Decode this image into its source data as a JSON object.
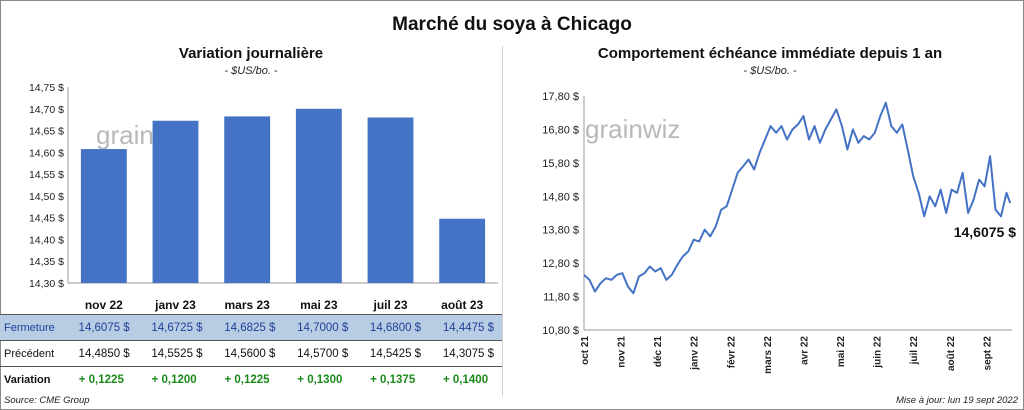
{
  "title": "Marché du soya à Chicago",
  "colors": {
    "bar": "#4472c4",
    "line": "#4472c4",
    "ferm_bg": "#b8cce4",
    "positive": "#1a8a1a"
  },
  "left_panel": {
    "title": "Variation journalière",
    "subtitle": "- $US/bo. -",
    "watermark": "grainwiz"
  },
  "right_panel": {
    "title": "Comportement échéance immédiate depuis 1 an",
    "subtitle": "- $US/bo. -",
    "watermark": "grainwiz",
    "last_label": "14,6075 $"
  },
  "table": {
    "rows": [
      {
        "label": "Fermeture",
        "cells": [
          "14,6075  $",
          "14,6725  $",
          "14,6825  $",
          "14,7000  $",
          "14,6800  $",
          "14,4475  $"
        ]
      },
      {
        "label": "Précédent",
        "cells": [
          "14,4850  $",
          "14,5525  $",
          "14,5600  $",
          "14,5700  $",
          "14,5425  $",
          "14,3075  $"
        ]
      },
      {
        "label": "Variation",
        "cells": [
          "+ 0,1225",
          "+ 0,1200",
          "+ 0,1225",
          "+ 0,1300",
          "+ 0,1375",
          "+ 0,1400"
        ]
      }
    ]
  },
  "footer": {
    "source": "Source: CME Group",
    "update": "Mise à jour: lun 19 sept 2022"
  },
  "chart_data": [
    {
      "type": "bar",
      "title": "Variation journalière",
      "subtitle": "- $US/bo. -",
      "categories": [
        "nov 22",
        "janv 23",
        "mars 23",
        "mai 23",
        "juil 23",
        "août 23"
      ],
      "values": [
        14.6075,
        14.6725,
        14.6825,
        14.7,
        14.68,
        14.4475
      ],
      "ylim": [
        14.3,
        14.75
      ],
      "yticks": [
        14.3,
        14.35,
        14.4,
        14.45,
        14.5,
        14.55,
        14.6,
        14.65,
        14.7,
        14.75
      ],
      "ytick_labels": [
        "14,30 $",
        "14,35 $",
        "14,40 $",
        "14,45 $",
        "14,50 $",
        "14,55 $",
        "14,60 $",
        "14,65 $",
        "14,70 $",
        "14,75 $"
      ],
      "grid": false
    },
    {
      "type": "line",
      "title": "Comportement échéance immédiate depuis 1 an",
      "subtitle": "- $US/bo. -",
      "ylim": [
        10.8,
        17.8
      ],
      "yticks": [
        10.8,
        11.8,
        12.8,
        13.8,
        14.8,
        15.8,
        16.8,
        17.8
      ],
      "ytick_labels": [
        "10,80 $",
        "11,80 $",
        "12,80 $",
        "13,80 $",
        "14,80 $",
        "15,80 $",
        "16,80 $",
        "17,80 $"
      ],
      "xticks": [
        0,
        1,
        2,
        3,
        4,
        5,
        6,
        7,
        8,
        9,
        10,
        11
      ],
      "xtick_labels": [
        "oct 21",
        "nov 21",
        "déc 21",
        "janv 22",
        "févr 22",
        "mars 22",
        "avr 22",
        "mai 22",
        "juin 22",
        "juil 22",
        "août 22",
        "sept 22"
      ],
      "x_unit": "months since oct 2021",
      "x": [
        0,
        0.15,
        0.3,
        0.45,
        0.6,
        0.75,
        0.9,
        1.05,
        1.2,
        1.35,
        1.5,
        1.65,
        1.8,
        1.95,
        2.1,
        2.25,
        2.4,
        2.55,
        2.7,
        2.85,
        3.0,
        3.15,
        3.3,
        3.45,
        3.6,
        3.75,
        3.9,
        4.05,
        4.2,
        4.35,
        4.5,
        4.65,
        4.8,
        4.95,
        5.1,
        5.25,
        5.4,
        5.55,
        5.7,
        5.85,
        6.0,
        6.15,
        6.3,
        6.45,
        6.6,
        6.75,
        6.9,
        7.05,
        7.2,
        7.35,
        7.5,
        7.65,
        7.8,
        7.95,
        8.1,
        8.25,
        8.4,
        8.55,
        8.7,
        8.85,
        9.0,
        9.15,
        9.3,
        9.45,
        9.6,
        9.75,
        9.9,
        10.05,
        10.2,
        10.35,
        10.5,
        10.65,
        10.8,
        10.95,
        11.1,
        11.25,
        11.4,
        11.55,
        11.65
      ],
      "y": [
        12.45,
        12.3,
        11.95,
        12.2,
        12.35,
        12.3,
        12.45,
        12.5,
        12.1,
        11.9,
        12.4,
        12.5,
        12.7,
        12.55,
        12.65,
        12.3,
        12.45,
        12.75,
        13.0,
        13.15,
        13.5,
        13.45,
        13.8,
        13.6,
        13.9,
        14.4,
        14.5,
        15.0,
        15.5,
        15.7,
        15.9,
        15.6,
        16.1,
        16.5,
        16.9,
        16.7,
        16.9,
        16.5,
        16.8,
        16.95,
        17.2,
        16.5,
        16.9,
        16.4,
        16.8,
        17.1,
        17.4,
        16.9,
        16.2,
        16.8,
        16.4,
        16.6,
        16.5,
        16.7,
        17.2,
        17.6,
        16.9,
        16.7,
        16.95,
        16.2,
        15.4,
        14.9,
        14.2,
        14.8,
        14.5,
        15.0,
        14.3,
        15.0,
        14.9,
        15.5,
        14.3,
        14.7,
        15.3,
        15.1,
        16.0,
        14.4,
        14.2,
        14.9,
        14.6
      ]
    }
  ]
}
